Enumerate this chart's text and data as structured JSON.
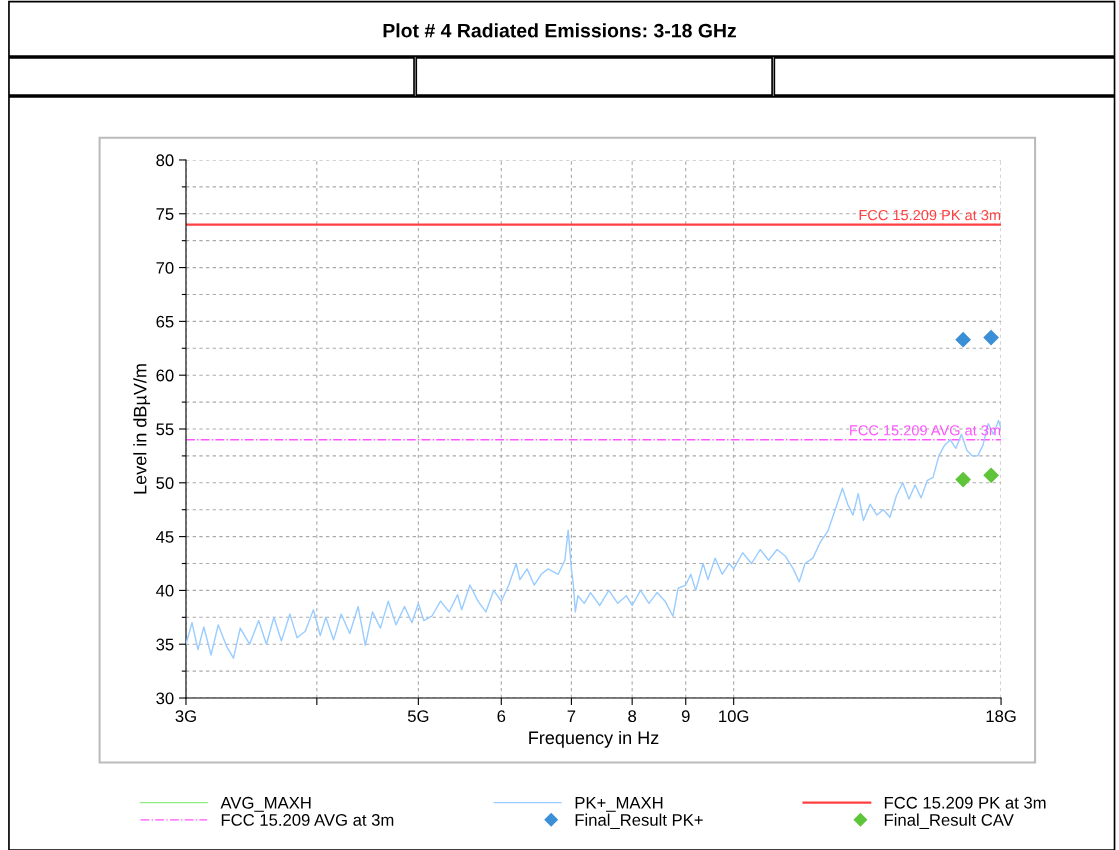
{
  "chart_data": {
    "type": "line",
    "title": "Plot # 4 Radiated Emissions: 3-18 GHz",
    "xlabel": "Frequency in Hz",
    "ylabel": "Level in dBµV/m",
    "log": "x",
    "grid": true,
    "legend": "bottom",
    "xlim": [
      3,
      18
    ],
    "xticks": [
      {
        "value": 3,
        "label": "3G"
      },
      {
        "value": 4,
        "label": null
      },
      {
        "value": 5,
        "label": "5G"
      },
      6,
      7,
      8,
      9,
      {
        "value": 10,
        "label": "10G"
      },
      {
        "value": 18,
        "label": "18G"
      }
    ],
    "ylim": [
      30,
      80
    ],
    "yticks": [
      30,
      {
        "value": 32.5,
        "label": null
      },
      35,
      {
        "value": 37.5,
        "label": null
      },
      40,
      {
        "value": 42.5,
        "label": null
      },
      45,
      {
        "value": 47.5,
        "label": null
      },
      50,
      {
        "value": 52.5,
        "label": null
      },
      55,
      {
        "value": 57.5,
        "label": null
      },
      60,
      {
        "value": 62.5,
        "label": null
      },
      65,
      {
        "value": 67.5,
        "label": null
      },
      70,
      {
        "value": 72.5,
        "label": null
      },
      75,
      {
        "value": 77.5,
        "label": null
      },
      80
    ],
    "series": [
      {
        "name": "AVG_MAXH",
        "color": "#90ee80"
      },
      {
        "name": "PK+_MAXH",
        "color": "#99ccff",
        "x": [
          3.0,
          3.04,
          3.08,
          3.12,
          3.17,
          3.22,
          3.28,
          3.33,
          3.38,
          3.45,
          3.52,
          3.58,
          3.64,
          3.7,
          3.77,
          3.83,
          3.9,
          3.97,
          4.03,
          4.08,
          4.15,
          4.22,
          4.3,
          4.38,
          4.45,
          4.52,
          4.6,
          4.68,
          4.76,
          4.85,
          4.93,
          5.0,
          5.06,
          5.15,
          5.25,
          5.35,
          5.45,
          5.5,
          5.6,
          5.7,
          5.8,
          5.9,
          6.0,
          6.1,
          6.2,
          6.25,
          6.35,
          6.45,
          6.55,
          6.65,
          6.8,
          6.9,
          6.95,
          7.0,
          7.03,
          7.06,
          7.1,
          7.2,
          7.3,
          7.45,
          7.6,
          7.75,
          7.9,
          8.0,
          8.15,
          8.3,
          8.45,
          8.6,
          8.75,
          8.85,
          9.0,
          9.1,
          9.2,
          9.35,
          9.45,
          9.6,
          9.75,
          9.9,
          10.0,
          10.2,
          10.4,
          10.6,
          10.8,
          11.0,
          11.2,
          11.4,
          11.55,
          11.7,
          11.9,
          12.1,
          12.3,
          12.5,
          12.7,
          12.85,
          13.0,
          13.15,
          13.3,
          13.5,
          13.7,
          13.9,
          14.1,
          14.3,
          14.5,
          14.7,
          14.9,
          15.1,
          15.3,
          15.5,
          15.7,
          15.9,
          16.1,
          16.3,
          16.5,
          16.7,
          16.9,
          17.1,
          17.3,
          17.5,
          17.7,
          17.9,
          18.0
        ],
        "values": [
          35.0,
          37.0,
          34.5,
          36.6,
          34.0,
          36.8,
          34.8,
          33.7,
          36.5,
          35.0,
          37.2,
          35.0,
          37.5,
          35.3,
          37.8,
          35.6,
          36.2,
          38.2,
          35.8,
          37.5,
          35.4,
          37.8,
          36.0,
          38.5,
          34.9,
          38.0,
          36.5,
          39.0,
          36.8,
          38.5,
          37.0,
          38.8,
          37.2,
          37.6,
          39.0,
          38.0,
          39.6,
          38.2,
          40.5,
          39.0,
          38.0,
          40.0,
          39.0,
          40.5,
          42.5,
          41.0,
          42.0,
          40.5,
          41.5,
          42.0,
          41.5,
          42.8,
          45.6,
          42.0,
          40.5,
          38.0,
          39.5,
          38.8,
          39.8,
          38.6,
          40.0,
          38.8,
          39.5,
          38.6,
          40.0,
          38.8,
          39.8,
          39.0,
          37.6,
          40.2,
          40.5,
          41.5,
          40.0,
          42.5,
          41.0,
          43.0,
          41.5,
          42.5,
          42.0,
          43.5,
          42.5,
          43.8,
          42.8,
          43.8,
          43.2,
          42.0,
          40.8,
          42.5,
          43.0,
          44.5,
          45.5,
          47.5,
          49.5,
          48.0,
          47.0,
          49.0,
          46.5,
          48.0,
          47.0,
          47.5,
          46.8,
          48.8,
          50.0,
          48.5,
          49.8,
          48.6,
          50.2,
          50.5,
          52.5,
          53.5,
          54.0,
          53.2,
          54.5,
          53.0,
          52.5,
          52.5,
          53.5,
          55.5,
          54.5,
          55.8,
          55.0
        ]
      },
      {
        "name": "Final_Result PK+",
        "type": "scatter",
        "marker": "diamond",
        "color": "#3a8fd6",
        "x": [
          16.56,
          17.61
        ],
        "values": [
          63.3,
          63.5
        ]
      },
      {
        "name": "Final_Result CAV",
        "type": "scatter",
        "marker": "diamond",
        "color": "#5ec43a",
        "x": [
          16.56,
          17.61
        ],
        "values": [
          50.3,
          50.7
        ]
      }
    ],
    "ref_lines": [
      {
        "axis": "y",
        "value": 74,
        "label": "FCC 15.209 PK at 3m",
        "color": "#ff4040",
        "line_style": "solid"
      },
      {
        "axis": "y",
        "value": 54,
        "label": "FCC 15.209 AVG at 3m",
        "color": "#ff55ff",
        "line_style": "dashdot"
      }
    ]
  }
}
